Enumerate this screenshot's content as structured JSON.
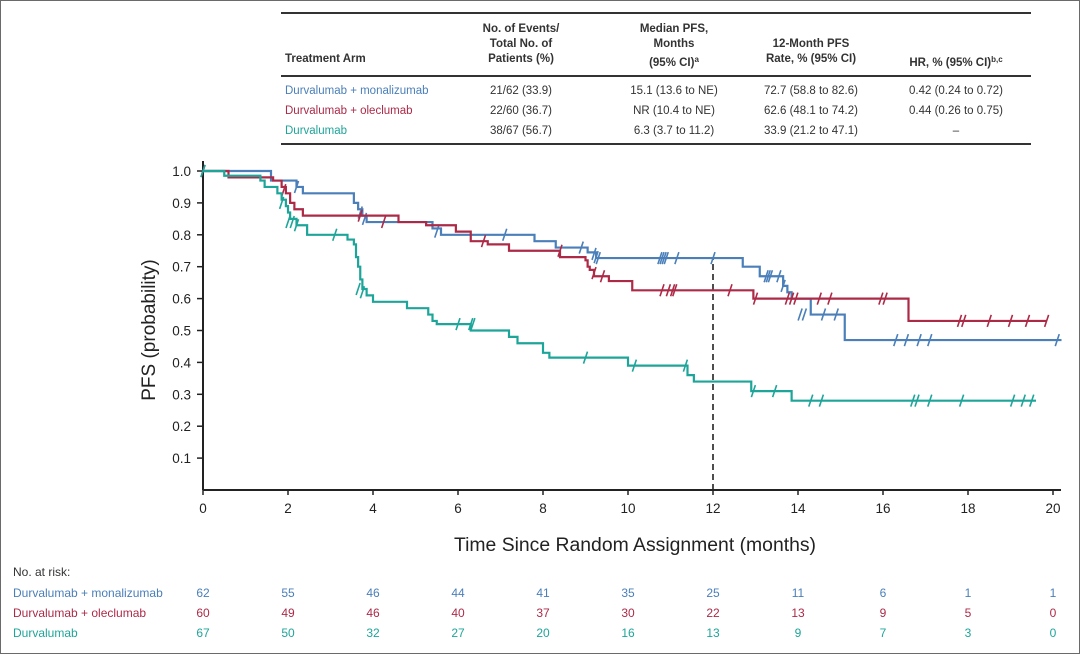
{
  "colors": {
    "monalizumab": "#4a7fb9",
    "oleclumab": "#ad2a47",
    "durvalumab": "#1ea59a",
    "text": "#333333",
    "axis": "#222222"
  },
  "summary_table": {
    "headers": {
      "arm": "Treatment Arm",
      "events": [
        "No. of Events/",
        "Total No. of",
        "Patients (%)"
      ],
      "median": [
        "Median PFS,",
        "Months",
        "(95% CI)"
      ],
      "median_sup": "a",
      "rate": [
        "12-Month PFS",
        "Rate, % (95% CI)"
      ],
      "hr": "HR, % (95% CI)",
      "hr_sup": "b,c"
    },
    "rows": [
      {
        "arm": "Durvalumab + monalizumab",
        "events": "21/62 (33.9)",
        "median": "15.1 (13.6 to NE)",
        "rate": "72.7 (58.8 to 82.6)",
        "hr": "0.42 (0.24 to 0.72)"
      },
      {
        "arm": "Durvalumab + oleclumab",
        "events": "22/60 (36.7)",
        "median": "NR (10.4 to NE)",
        "rate": "62.6 (48.1 to 74.2)",
        "hr": "0.44 (0.26 to 0.75)"
      },
      {
        "arm": "Durvalumab",
        "events": "38/67 (56.7)",
        "median": "6.3 (3.7 to 11.2)",
        "rate": "33.9 (21.2 to 47.1)",
        "hr": "–"
      }
    ]
  },
  "at_risk": {
    "label": "No. at risk:",
    "rows": [
      {
        "arm": "Durvalumab + monalizumab",
        "values": [
          62,
          55,
          46,
          44,
          41,
          35,
          25,
          11,
          6,
          1,
          1
        ]
      },
      {
        "arm": "Durvalumab + oleclumab",
        "values": [
          60,
          49,
          46,
          40,
          37,
          30,
          22,
          13,
          9,
          5,
          0
        ]
      },
      {
        "arm": "Durvalumab",
        "values": [
          67,
          50,
          32,
          27,
          20,
          16,
          13,
          9,
          7,
          3,
          0
        ]
      }
    ]
  },
  "chart_data": {
    "type": "line",
    "subtype": "kaplan-meier step",
    "title": "",
    "xlabel": "Time Since Random Assignment (months)",
    "ylabel": "PFS  (probability)",
    "xlim": [
      0,
      20
    ],
    "ylim": [
      0,
      1.0
    ],
    "xticks": [
      0,
      2,
      4,
      6,
      8,
      10,
      12,
      14,
      16,
      18,
      20
    ],
    "yticks": [
      0.1,
      0.2,
      0.3,
      0.4,
      0.5,
      0.6,
      0.7,
      0.8,
      0.9,
      1.0
    ],
    "ytick_labels": [
      "0.1",
      "0.2",
      "0.3",
      "0.4",
      "0.5",
      "0.6",
      "0.7",
      "0.8",
      "0.9",
      "1.0"
    ],
    "reference_line": {
      "x": 12,
      "style": "dashed",
      "ymax": 0.727
    },
    "grid": false,
    "series": [
      {
        "name": "Durvalumab + monalizumab",
        "key": "monalizumab",
        "steps": [
          [
            0,
            1.0
          ],
          [
            1.6,
            0.97
          ],
          [
            2.2,
            0.95
          ],
          [
            2.35,
            0.93
          ],
          [
            3.55,
            0.9
          ],
          [
            3.65,
            0.88
          ],
          [
            3.75,
            0.86
          ],
          [
            3.85,
            0.84
          ],
          [
            5.4,
            0.82
          ],
          [
            5.6,
            0.8
          ],
          [
            7.8,
            0.78
          ],
          [
            8.3,
            0.76
          ],
          [
            9.05,
            0.745
          ],
          [
            9.25,
            0.727
          ],
          [
            11.4,
            0.727
          ],
          [
            12.7,
            0.7
          ],
          [
            13.1,
            0.67
          ],
          [
            13.65,
            0.64
          ],
          [
            13.75,
            0.62
          ],
          [
            13.85,
            0.6
          ],
          [
            14.3,
            0.55
          ],
          [
            15.1,
            0.47
          ],
          [
            20.2,
            0.47
          ]
        ],
        "censors": [
          [
            0,
            1.0
          ],
          [
            2.2,
            0.95
          ],
          [
            3.7,
            0.87
          ],
          [
            3.8,
            0.85
          ],
          [
            5.5,
            0.81
          ],
          [
            7.1,
            0.8
          ],
          [
            8.9,
            0.76
          ],
          [
            9.2,
            0.74
          ],
          [
            9.25,
            0.73
          ],
          [
            9.3,
            0.727
          ],
          [
            10.75,
            0.727
          ],
          [
            10.8,
            0.727
          ],
          [
            10.85,
            0.727
          ],
          [
            10.9,
            0.727
          ],
          [
            11.15,
            0.727
          ],
          [
            12.0,
            0.727
          ],
          [
            13.25,
            0.67
          ],
          [
            13.3,
            0.67
          ],
          [
            13.35,
            0.67
          ],
          [
            13.55,
            0.67
          ],
          [
            13.65,
            0.64
          ],
          [
            14.05,
            0.55
          ],
          [
            14.15,
            0.55
          ],
          [
            14.6,
            0.55
          ],
          [
            14.9,
            0.55
          ],
          [
            16.3,
            0.47
          ],
          [
            16.55,
            0.47
          ],
          [
            16.85,
            0.47
          ],
          [
            17.1,
            0.47
          ],
          [
            20.1,
            0.47
          ]
        ]
      },
      {
        "name": "Durvalumab + oleclumab",
        "key": "oleclumab",
        "steps": [
          [
            0,
            1.0
          ],
          [
            0.6,
            0.98
          ],
          [
            1.65,
            0.97
          ],
          [
            1.85,
            0.95
          ],
          [
            1.95,
            0.93
          ],
          [
            2.05,
            0.9
          ],
          [
            2.15,
            0.88
          ],
          [
            2.35,
            0.86
          ],
          [
            4.6,
            0.84
          ],
          [
            5.25,
            0.83
          ],
          [
            5.95,
            0.81
          ],
          [
            6.3,
            0.78
          ],
          [
            6.7,
            0.77
          ],
          [
            7.2,
            0.75
          ],
          [
            8.4,
            0.73
          ],
          [
            9.0,
            0.72
          ],
          [
            9.05,
            0.7
          ],
          [
            9.1,
            0.69
          ],
          [
            9.2,
            0.67
          ],
          [
            9.55,
            0.655
          ],
          [
            10.1,
            0.626
          ],
          [
            12.0,
            0.626
          ],
          [
            12.95,
            0.6
          ],
          [
            16.6,
            0.53
          ],
          [
            19.85,
            0.53
          ]
        ],
        "censors": [
          [
            0,
            1.0
          ],
          [
            1.9,
            0.94
          ],
          [
            3.7,
            0.86
          ],
          [
            4.25,
            0.84
          ],
          [
            6.6,
            0.78
          ],
          [
            8.4,
            0.75
          ],
          [
            9.2,
            0.68
          ],
          [
            9.4,
            0.67
          ],
          [
            10.8,
            0.626
          ],
          [
            10.95,
            0.626
          ],
          [
            11.05,
            0.626
          ],
          [
            11.1,
            0.626
          ],
          [
            12.4,
            0.626
          ],
          [
            13.0,
            0.6
          ],
          [
            13.75,
            0.6
          ],
          [
            13.85,
            0.6
          ],
          [
            13.95,
            0.6
          ],
          [
            14.5,
            0.6
          ],
          [
            14.75,
            0.6
          ],
          [
            15.95,
            0.6
          ],
          [
            16.05,
            0.6
          ],
          [
            17.8,
            0.53
          ],
          [
            17.9,
            0.53
          ],
          [
            18.5,
            0.53
          ],
          [
            19.0,
            0.53
          ],
          [
            19.4,
            0.53
          ],
          [
            19.85,
            0.53
          ]
        ]
      },
      {
        "name": "Durvalumab",
        "key": "durvalumab",
        "steps": [
          [
            0,
            1.0
          ],
          [
            0.5,
            0.985
          ],
          [
            1.35,
            0.97
          ],
          [
            1.45,
            0.95
          ],
          [
            1.75,
            0.93
          ],
          [
            1.85,
            0.91
          ],
          [
            1.95,
            0.89
          ],
          [
            2.0,
            0.87
          ],
          [
            2.05,
            0.85
          ],
          [
            2.2,
            0.83
          ],
          [
            2.45,
            0.8
          ],
          [
            3.4,
            0.785
          ],
          [
            3.55,
            0.77
          ],
          [
            3.6,
            0.73
          ],
          [
            3.65,
            0.7
          ],
          [
            3.7,
            0.66
          ],
          [
            3.75,
            0.63
          ],
          [
            3.85,
            0.61
          ],
          [
            4.0,
            0.59
          ],
          [
            4.8,
            0.57
          ],
          [
            5.3,
            0.55
          ],
          [
            5.4,
            0.53
          ],
          [
            5.5,
            0.52
          ],
          [
            6.3,
            0.5
          ],
          [
            7.2,
            0.48
          ],
          [
            7.4,
            0.46
          ],
          [
            8.0,
            0.43
          ],
          [
            8.15,
            0.415
          ],
          [
            10.0,
            0.39
          ],
          [
            11.4,
            0.36
          ],
          [
            11.55,
            0.34
          ],
          [
            12.0,
            0.34
          ],
          [
            12.9,
            0.31
          ],
          [
            13.85,
            0.28
          ],
          [
            19.6,
            0.28
          ]
        ],
        "censors": [
          [
            0,
            1.0
          ],
          [
            1.85,
            0.9
          ],
          [
            2.0,
            0.84
          ],
          [
            2.1,
            0.84
          ],
          [
            2.2,
            0.83
          ],
          [
            3.1,
            0.8
          ],
          [
            3.65,
            0.63
          ],
          [
            3.75,
            0.62
          ],
          [
            6.0,
            0.52
          ],
          [
            6.3,
            0.52
          ],
          [
            6.35,
            0.52
          ],
          [
            9.0,
            0.415
          ],
          [
            10.15,
            0.39
          ],
          [
            11.35,
            0.39
          ],
          [
            12.95,
            0.31
          ],
          [
            13.45,
            0.31
          ],
          [
            14.3,
            0.28
          ],
          [
            14.55,
            0.28
          ],
          [
            16.7,
            0.28
          ],
          [
            16.8,
            0.28
          ],
          [
            17.1,
            0.28
          ],
          [
            17.85,
            0.28
          ],
          [
            19.05,
            0.28
          ],
          [
            19.3,
            0.28
          ],
          [
            19.5,
            0.28
          ]
        ]
      }
    ]
  }
}
